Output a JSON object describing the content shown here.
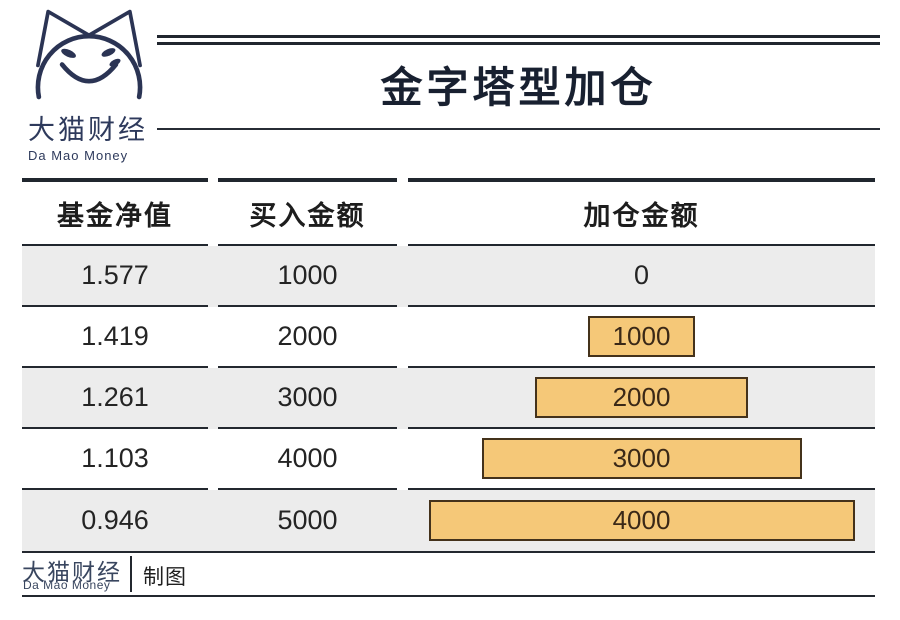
{
  "brand": {
    "logo_icon": "cat-face-icon",
    "name_cn": "大猫财经",
    "name_en": "Da Mao Money",
    "color": "#2e3a5c"
  },
  "title": "金字塔型加仓",
  "table": {
    "columns": [
      "基金净值",
      "买入金额",
      "加仓金额"
    ],
    "rows": [
      {
        "nav": "1.577",
        "buy": "1000",
        "add": "0",
        "add_value": 0
      },
      {
        "nav": "1.419",
        "buy": "2000",
        "add": "1000",
        "add_value": 1000
      },
      {
        "nav": "1.261",
        "buy": "3000",
        "add": "2000",
        "add_value": 2000
      },
      {
        "nav": "1.103",
        "buy": "4000",
        "add": "3000",
        "add_value": 3000
      },
      {
        "nav": "0.946",
        "buy": "5000",
        "add": "4000",
        "add_value": 4000
      }
    ],
    "bar_max": 4000
  },
  "footer": {
    "brand_cn": "大猫财经",
    "brand_en": "Da Mao Money",
    "credit": "制图"
  },
  "colors": {
    "ink": "#20262e",
    "brand_navy": "#2e3a5c",
    "row_alt": "#ececec",
    "bar_fill": "#f5c878",
    "bar_border": "#44321b",
    "bar_text": "#3a2817",
    "body_text": "#242424"
  },
  "chart_data": {
    "type": "table",
    "title": "金字塔型加仓",
    "columns": [
      "基金净值",
      "买入金额",
      "加仓金额"
    ],
    "rows": [
      [
        "1.577",
        "1000",
        "0"
      ],
      [
        "1.419",
        "2000",
        "1000"
      ],
      [
        "1.261",
        "3000",
        "2000"
      ],
      [
        "1.103",
        "4000",
        "3000"
      ],
      [
        "0.946",
        "5000",
        "4000"
      ]
    ],
    "bar_overlay": {
      "type": "bar",
      "series_name": "加仓金额",
      "categories": [
        "1.577",
        "1.419",
        "1.261",
        "1.103",
        "0.946"
      ],
      "values": [
        0,
        1000,
        2000,
        3000,
        4000
      ],
      "orientation": "horizontal",
      "alignment": "center",
      "value_range": [
        0,
        4000
      ],
      "row_shading": "alternating"
    }
  }
}
